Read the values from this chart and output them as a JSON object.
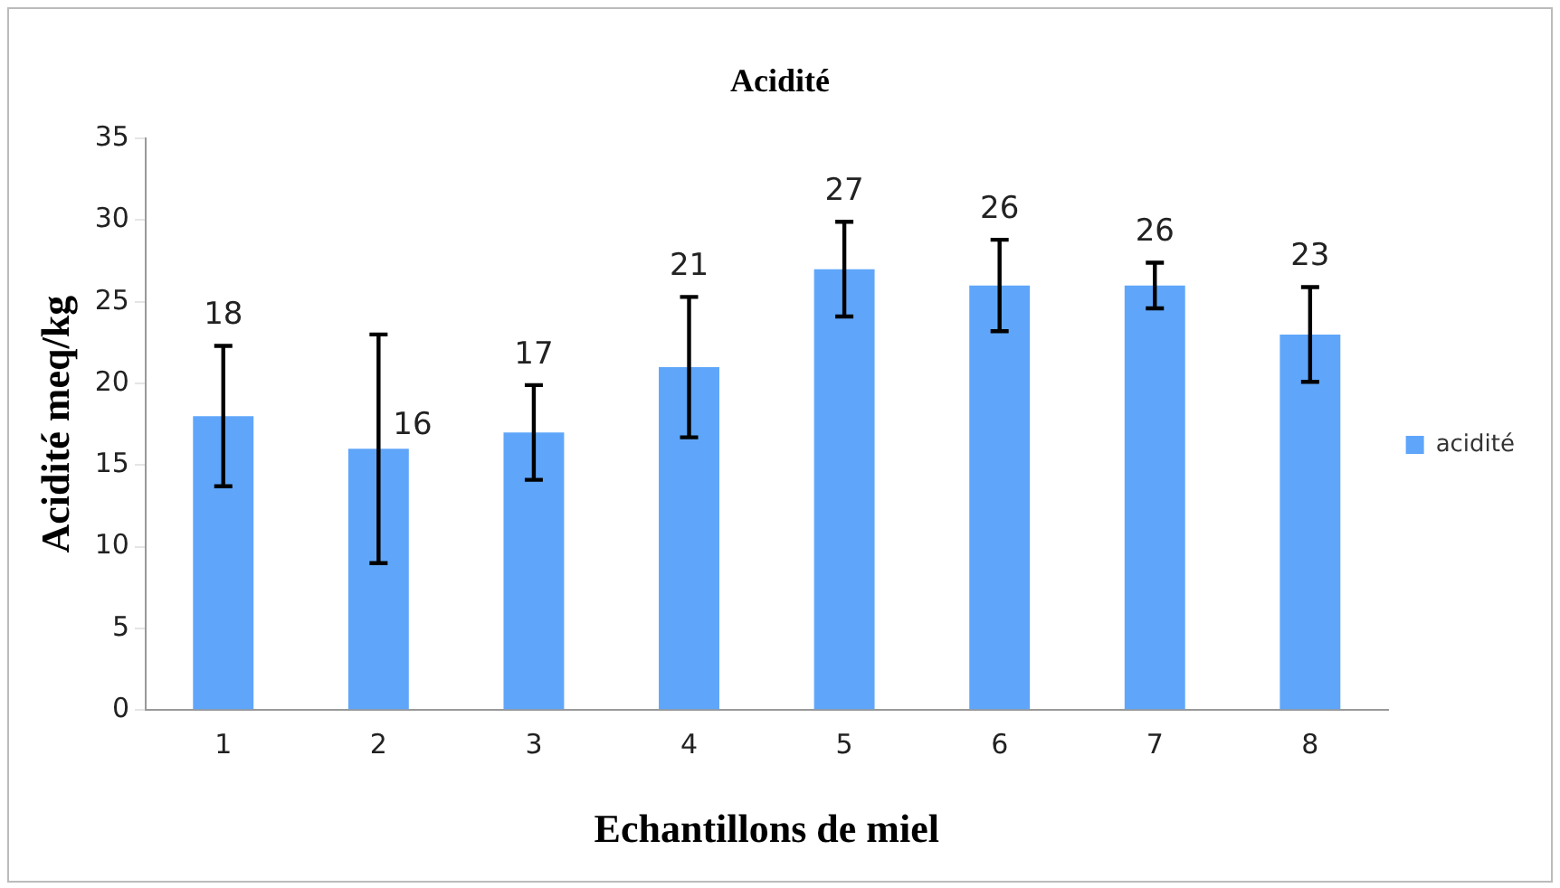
{
  "chart_data": {
    "type": "bar",
    "title": "Acidité",
    "xlabel": "Echantillons de miel",
    "ylabel": "Acidité meq/kg",
    "categories": [
      "1",
      "2",
      "3",
      "4",
      "5",
      "6",
      "7",
      "8"
    ],
    "series": [
      {
        "name": "acidité",
        "color": "#5fa6fa",
        "values": [
          18,
          16,
          17,
          21,
          27,
          26,
          26,
          23
        ],
        "errors": [
          4.3,
          7,
          2.9,
          4.3,
          2.9,
          2.8,
          1.4,
          2.9
        ]
      }
    ],
    "ylim": [
      0,
      35
    ],
    "yticks": [
      0,
      5,
      10,
      15,
      20,
      25,
      30,
      35
    ],
    "grid": false,
    "legend": "right",
    "data_labels": true
  }
}
